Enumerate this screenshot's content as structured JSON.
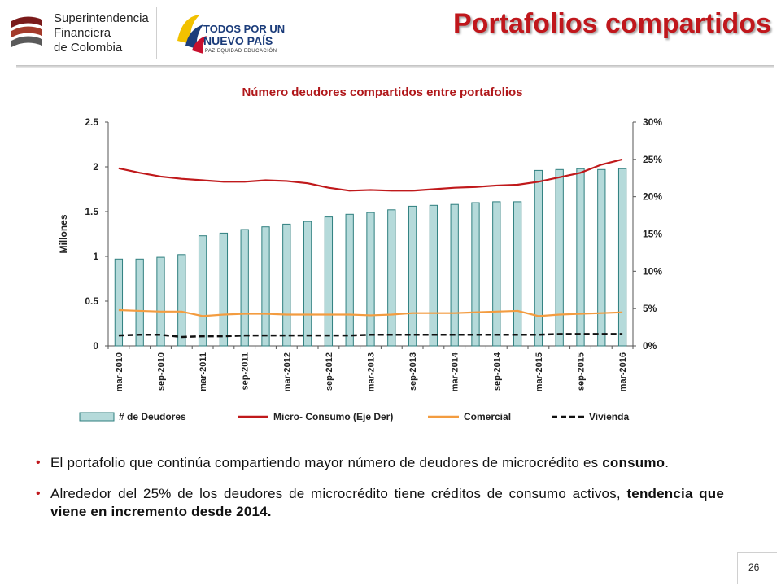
{
  "header": {
    "org_line1": "Superintendencia",
    "org_line2": "Financiera",
    "org_line3": "de Colombia",
    "gov_line1": "TODOS POR UN",
    "gov_line2": "NUEVO PAÍS",
    "gov_line3": "PAZ  EQUIDAD  EDUCACIÓN",
    "page_title": "Portafolios compartidos"
  },
  "chart_data": {
    "type": "bar",
    "title": "Número deudores compartidos entre portafolios",
    "ylabel": "Millones",
    "ylim": [
      0,
      2.5
    ],
    "y_ticks": [
      "0",
      "0.5",
      "1",
      "1.5",
      "2",
      "2.5"
    ],
    "y2lim": [
      0,
      30
    ],
    "y2_ticks": [
      "0%",
      "5%",
      "10%",
      "15%",
      "20%",
      "25%",
      "30%"
    ],
    "x_tick_labels": [
      "mar-2010",
      "sep-2010",
      "mar-2011",
      "sep-2011",
      "mar-2012",
      "sep-2012",
      "mar-2013",
      "sep-2013",
      "mar-2014",
      "sep-2014",
      "mar-2015",
      "sep-2015",
      "mar-2016"
    ],
    "n_periods": 25,
    "legend_position": "bottom",
    "colors": {
      "bar_fill": "#b5dada",
      "bar_stroke": "#2f7f7f",
      "micro": "#c0191b",
      "comercial": "#f39c40",
      "vivienda": "#111111",
      "axis": "#555555"
    },
    "series": [
      {
        "name": "# de Deudores",
        "kind": "bar",
        "axis": "left",
        "values": [
          0.97,
          0.97,
          0.99,
          1.02,
          1.23,
          1.26,
          1.3,
          1.33,
          1.36,
          1.39,
          1.44,
          1.47,
          1.49,
          1.52,
          1.56,
          1.57,
          1.58,
          1.6,
          1.61,
          1.61,
          1.96,
          1.97,
          1.98,
          1.97,
          1.98
        ]
      },
      {
        "name": "Micro- Consumo (Eje Der)",
        "kind": "line",
        "axis": "right",
        "values": [
          23.8,
          23.2,
          22.7,
          22.4,
          22.2,
          22.0,
          22.0,
          22.2,
          22.1,
          21.8,
          21.2,
          20.8,
          20.9,
          20.8,
          20.8,
          21.0,
          21.2,
          21.3,
          21.5,
          21.6,
          22.0,
          22.6,
          23.2,
          24.3,
          25.0
        ]
      },
      {
        "name": "Comercial",
        "kind": "line",
        "axis": "right",
        "values": [
          4.8,
          4.7,
          4.6,
          4.6,
          4.0,
          4.2,
          4.3,
          4.3,
          4.2,
          4.2,
          4.2,
          4.2,
          4.1,
          4.2,
          4.4,
          4.4,
          4.4,
          4.5,
          4.6,
          4.7,
          4.0,
          4.2,
          4.3,
          4.4,
          4.5
        ]
      },
      {
        "name": "Vivienda",
        "kind": "dashed-line",
        "axis": "right",
        "values": [
          1.4,
          1.5,
          1.5,
          1.2,
          1.3,
          1.3,
          1.4,
          1.4,
          1.4,
          1.4,
          1.4,
          1.4,
          1.5,
          1.5,
          1.5,
          1.5,
          1.5,
          1.5,
          1.5,
          1.5,
          1.5,
          1.6,
          1.6,
          1.6,
          1.6
        ]
      }
    ]
  },
  "bullets": [
    {
      "text": "El portafolio que continúa compartiendo mayor número de deudores de microcrédito es ",
      "bold": "consumo",
      "end": "."
    },
    {
      "text": "Alrededor del 25% de los deudores de microcrédito tiene créditos de consumo activos, ",
      "bold": "tendencia que viene en incremento desde 2014.",
      "end": ""
    }
  ],
  "page_number": "26"
}
